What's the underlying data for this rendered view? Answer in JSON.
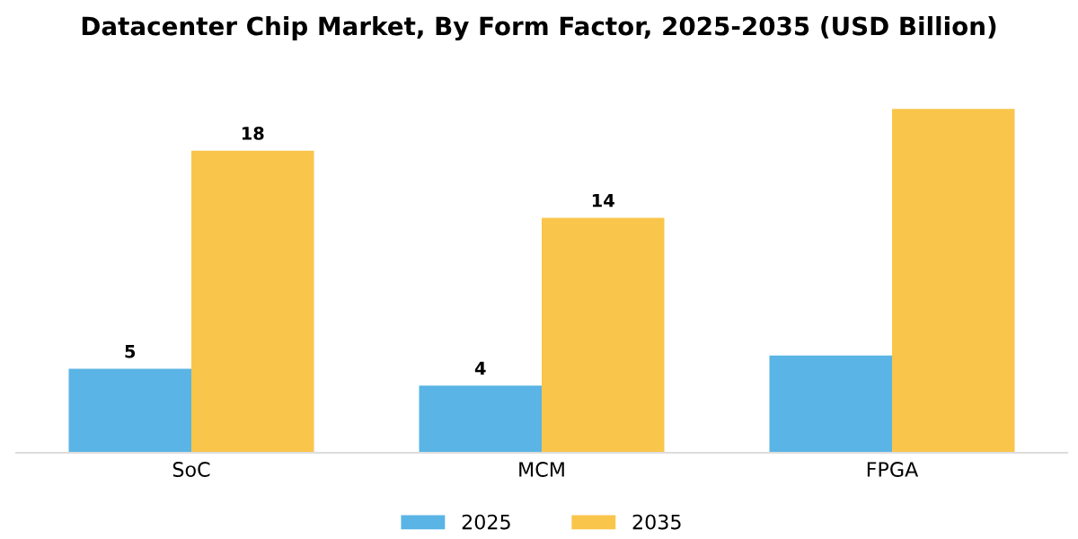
{
  "chart_data": {
    "type": "bar",
    "title": "Datacenter Chip Market, By Form Factor, 2025-2035 (USD Billion)",
    "categories": [
      "SoC",
      "MCM",
      "FPGA"
    ],
    "series": [
      {
        "name": "2025",
        "color": "#5ab4e5",
        "values": [
          5,
          4,
          5.8
        ],
        "value_labels": [
          "5",
          "4",
          null
        ]
      },
      {
        "name": "2035",
        "color": "#fac54b",
        "values": [
          18,
          14,
          20.5
        ],
        "value_labels": [
          "18",
          "14",
          null
        ]
      }
    ],
    "tick_labels": "x",
    "grid": false,
    "legend": "bottom"
  }
}
